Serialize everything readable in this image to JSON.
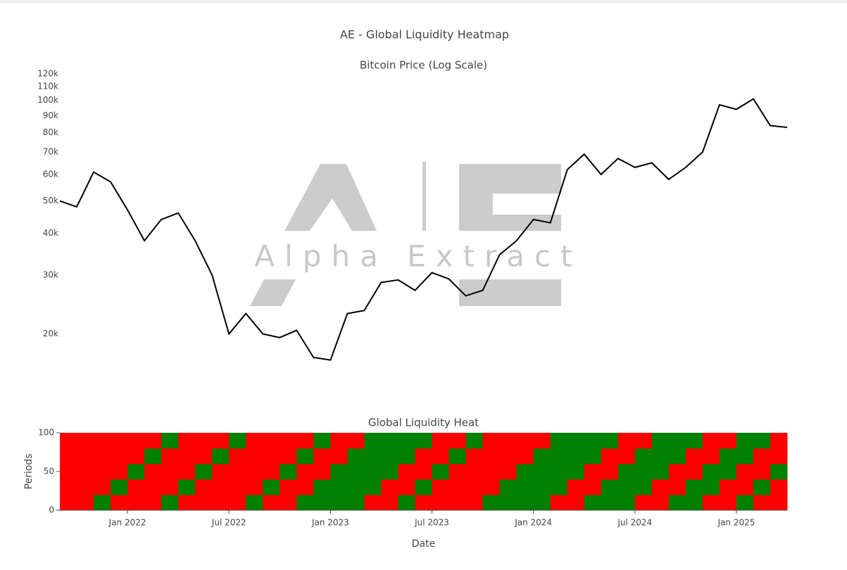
{
  "title": "AE - Global Liquidity Heatmap",
  "watermark": "Alpha Extract",
  "chart_data": [
    {
      "type": "line",
      "title": "Bitcoin Price (Log Scale)",
      "color": "#000000",
      "log_scale": true,
      "x": [
        "2021-09",
        "2021-10",
        "2021-11",
        "2021-12",
        "2022-01",
        "2022-02",
        "2022-03",
        "2022-04",
        "2022-05",
        "2022-06",
        "2022-07",
        "2022-08",
        "2022-09",
        "2022-10",
        "2022-11",
        "2022-12",
        "2023-01",
        "2023-02",
        "2023-03",
        "2023-04",
        "2023-05",
        "2023-06",
        "2023-07",
        "2023-08",
        "2023-09",
        "2023-10",
        "2023-11",
        "2023-12",
        "2024-01",
        "2024-02",
        "2024-03",
        "2024-04",
        "2024-05",
        "2024-06",
        "2024-07",
        "2024-08",
        "2024-09",
        "2024-10",
        "2024-11",
        "2024-12",
        "2025-01",
        "2025-02",
        "2025-03",
        "2025-04"
      ],
      "values": [
        50000,
        48000,
        61000,
        57000,
        47000,
        38000,
        44000,
        46000,
        38000,
        30000,
        20000,
        23000,
        20000,
        19500,
        20500,
        17000,
        16700,
        23000,
        23500,
        28500,
        29000,
        27000,
        30500,
        29200,
        26000,
        27000,
        34500,
        38000,
        44000,
        43000,
        62000,
        69000,
        60000,
        67000,
        63000,
        65000,
        58000,
        63000,
        70000,
        97000,
        94000,
        101000,
        84000,
        83000
      ],
      "xlim": [
        "2021-09",
        "2025-04"
      ],
      "ylim": [
        14000,
        120000
      ],
      "yticks": [
        {
          "value": 20000,
          "label": "20k"
        },
        {
          "value": 30000,
          "label": "30k"
        },
        {
          "value": 40000,
          "label": "40k"
        },
        {
          "value": 50000,
          "label": "50k"
        },
        {
          "value": 60000,
          "label": "60k"
        },
        {
          "value": 70000,
          "label": "70k"
        },
        {
          "value": 80000,
          "label": "80k"
        },
        {
          "value": 90000,
          "label": "90k"
        },
        {
          "value": 100000,
          "label": "100k"
        },
        {
          "value": 110000,
          "label": "110k"
        },
        {
          "value": 120000,
          "label": "120k"
        }
      ]
    },
    {
      "type": "heatmap",
      "title": "Global Liquidity Heat",
      "xlabel": "Date",
      "ylabel": "Periods",
      "colors": [
        "#008000",
        "#ff0000"
      ],
      "x": [
        "2021-09",
        "2021-10",
        "2021-11",
        "2021-12",
        "2022-01",
        "2022-02",
        "2022-03",
        "2022-04",
        "2022-05",
        "2022-06",
        "2022-07",
        "2022-08",
        "2022-09",
        "2022-10",
        "2022-11",
        "2022-12",
        "2023-01",
        "2023-02",
        "2023-03",
        "2023-04",
        "2023-05",
        "2023-06",
        "2023-07",
        "2023-08",
        "2023-09",
        "2023-10",
        "2023-11",
        "2023-12",
        "2024-01",
        "2024-02",
        "2024-03",
        "2024-04",
        "2024-05",
        "2024-06",
        "2024-07",
        "2024-08",
        "2024-09",
        "2024-10",
        "2024-11",
        "2024-12",
        "2025-01",
        "2025-02",
        "2025-03"
      ],
      "y": [
        0,
        20,
        40,
        60,
        80
      ],
      "z": [
        [
          1,
          1,
          0,
          1,
          1,
          1,
          0,
          1,
          1,
          1,
          1,
          0,
          1,
          1,
          0,
          0,
          0,
          0,
          1,
          1,
          0,
          1,
          1,
          1,
          1,
          0,
          0,
          0,
          0,
          1,
          1,
          0,
          0,
          0,
          1,
          1,
          0,
          0,
          1,
          1,
          0,
          1,
          1
        ],
        [
          1,
          1,
          1,
          0,
          1,
          1,
          1,
          0,
          1,
          1,
          1,
          1,
          0,
          1,
          1,
          0,
          0,
          0,
          0,
          1,
          1,
          0,
          1,
          1,
          1,
          1,
          0,
          0,
          0,
          0,
          1,
          1,
          0,
          0,
          0,
          1,
          1,
          0,
          0,
          1,
          1,
          0,
          1
        ],
        [
          1,
          1,
          1,
          1,
          0,
          1,
          1,
          1,
          0,
          1,
          1,
          1,
          1,
          0,
          1,
          1,
          0,
          0,
          0,
          0,
          1,
          1,
          0,
          1,
          1,
          1,
          1,
          0,
          0,
          0,
          0,
          1,
          1,
          0,
          0,
          0,
          1,
          1,
          0,
          0,
          1,
          1,
          0
        ],
        [
          1,
          1,
          1,
          1,
          1,
          0,
          1,
          1,
          1,
          0,
          1,
          1,
          1,
          1,
          0,
          1,
          1,
          0,
          0,
          0,
          0,
          1,
          1,
          0,
          1,
          1,
          1,
          1,
          0,
          0,
          0,
          0,
          1,
          1,
          0,
          0,
          0,
          1,
          1,
          0,
          0,
          1,
          1
        ],
        [
          1,
          1,
          1,
          1,
          1,
          1,
          0,
          1,
          1,
          1,
          0,
          1,
          1,
          1,
          1,
          0,
          1,
          1,
          0,
          0,
          0,
          0,
          1,
          1,
          0,
          1,
          1,
          1,
          1,
          0,
          0,
          0,
          0,
          1,
          1,
          0,
          0,
          0,
          1,
          1,
          0,
          0,
          1
        ]
      ],
      "xlim": [
        "2021-09",
        "2025-04"
      ],
      "ylim": [
        0,
        100
      ],
      "yticks": [
        0,
        50,
        100
      ],
      "xticks": [
        {
          "value": "2022-01",
          "label": "Jan 2022"
        },
        {
          "value": "2022-07",
          "label": "Jul 2022"
        },
        {
          "value": "2023-01",
          "label": "Jan 2023"
        },
        {
          "value": "2023-07",
          "label": "Jul 2023"
        },
        {
          "value": "2024-01",
          "label": "Jan 2024"
        },
        {
          "value": "2024-07",
          "label": "Jul 2024"
        },
        {
          "value": "2025-01",
          "label": "Jan 2025"
        }
      ]
    }
  ]
}
